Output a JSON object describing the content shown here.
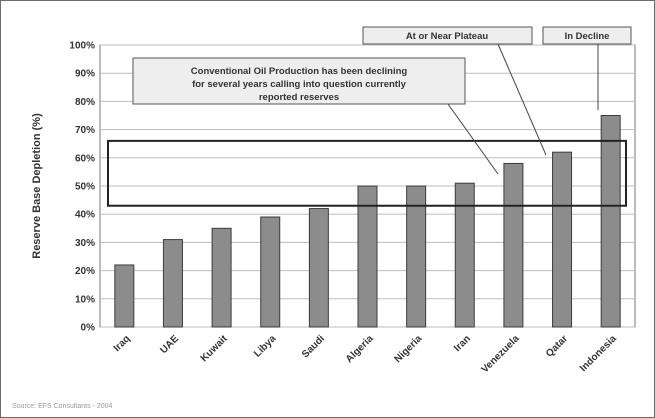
{
  "chart_data": {
    "type": "bar",
    "categories": [
      "Iraq",
      "UAE",
      "Kuwait",
      "Libya",
      "Saudi",
      "Algeria",
      "Nigeria",
      "Iran",
      "Venezuela",
      "Qatar",
      "Indonesia"
    ],
    "values": [
      22,
      31,
      35,
      39,
      42,
      50,
      50,
      51,
      58,
      62,
      75
    ],
    "ylabel": "Reserve Base Depletion (%)",
    "ylim": [
      0,
      100
    ],
    "yticks": [
      "0%",
      "10%",
      "20%",
      "30%",
      "40%",
      "50%",
      "60%",
      "70%",
      "80%",
      "90%",
      "100%"
    ],
    "grid": true,
    "bar_color": "#8c8c8c",
    "annotations": {
      "callout_lines": [
        "Conventional Oil Production has been declining",
        "for several years calling into question currently",
        "reported reserves"
      ],
      "plateau_label": "At or Near Plateau",
      "decline_label": "In Decline",
      "highlight_band": [
        43,
        66
      ]
    },
    "source": "Source: EFS Consultants - 2004"
  }
}
